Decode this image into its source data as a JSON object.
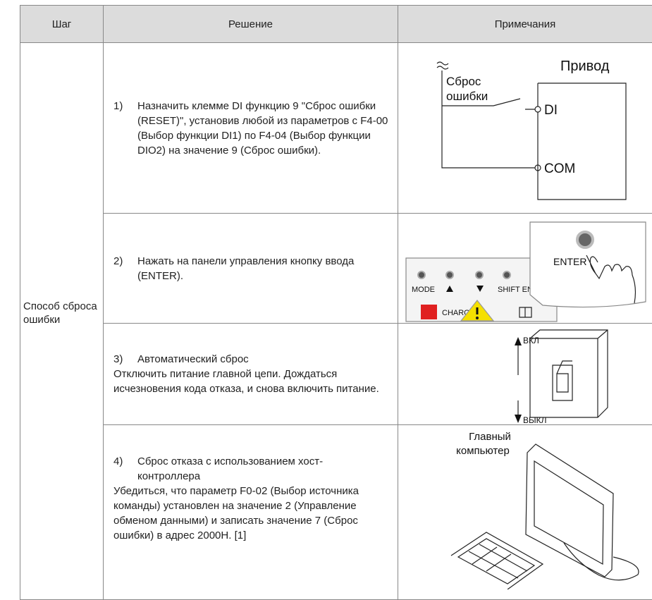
{
  "table": {
    "header": [
      "Шаг",
      "Решение",
      "Примечания"
    ],
    "step": "Способ сброса ошибки",
    "rows": [
      {
        "number": "1)",
        "title": "Назначить клемме DI функцию 9 \"Сброс ошибки (RESET)\", установив любой из параметров с F4-00 (Выбор функции DI1) по F4-04 (Выбор функции DIO2) на значение 9 (Сброс ошибки)."
      },
      {
        "number": "2)",
        "title": "Нажать на панели управления кнопку ввода (ENTER)."
      },
      {
        "number": "3)",
        "title": "Автоматический сброс",
        "text": "Отключить питание главной цепи. Дождаться исчезновения кода отказа, и снова включить питание."
      },
      {
        "number": "4)",
        "title": "Сброс отказа с использованием хост-контроллера",
        "text": "Убедиться, что параметр F0-02 (Выбор источника команды) установлен на значение 2 (Управление обменом данными) и записать значение 7 (Сброс ошибки) в адрес 2000H. [1]"
      }
    ]
  },
  "figures": {
    "drive": {
      "title": "Привод",
      "reset_label": [
        "Сброс",
        "ошибки"
      ],
      "di": "DI",
      "com": "COM"
    },
    "panel": {
      "mode": "MODE",
      "shift_enter": "SHIFT ENTER",
      "charge": "CHARGE",
      "enter": "ENTER"
    },
    "switch": {
      "on": "ВКЛ",
      "off": "ВЫКЛ"
    },
    "computer": {
      "label": [
        "Главный",
        "компьютер"
      ]
    }
  }
}
